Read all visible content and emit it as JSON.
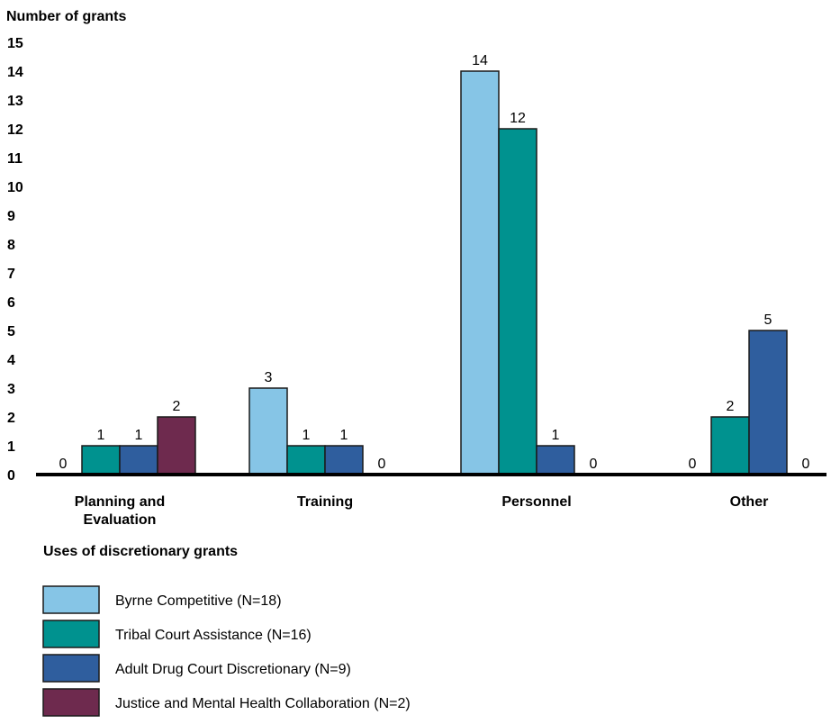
{
  "chart_data": {
    "type": "bar",
    "ylabel": "Number of grants",
    "xlabel": "Uses of discretionary grants",
    "ylim": [
      0,
      15
    ],
    "yticks": [
      0,
      1,
      2,
      3,
      4,
      5,
      6,
      7,
      8,
      9,
      10,
      11,
      12,
      13,
      14,
      15
    ],
    "categories": [
      "Planning and Evaluation",
      "Training",
      "Personnel",
      "Other"
    ],
    "category_lines": [
      [
        "Planning and",
        "Evaluation"
      ],
      [
        "Training"
      ],
      [
        "Personnel"
      ],
      [
        "Other"
      ]
    ],
    "series": [
      {
        "name": "Byrne Competitive (N=18)",
        "color": "#86c5e6",
        "values": [
          0,
          3,
          14,
          0
        ]
      },
      {
        "name": "Tribal Court Assistance (N=16)",
        "color": "#00928f",
        "values": [
          1,
          1,
          12,
          2
        ]
      },
      {
        "name": "Adult Drug Court Discretionary (N=9)",
        "color": "#2f5e9e",
        "values": [
          1,
          1,
          1,
          5
        ]
      },
      {
        "name": "Justice and Mental Health Collaboration (N=2)",
        "color": "#6e2a4e",
        "values": [
          2,
          0,
          0,
          0
        ]
      }
    ],
    "grid": false,
    "legend_position": "bottom-left",
    "data_labels": true
  }
}
